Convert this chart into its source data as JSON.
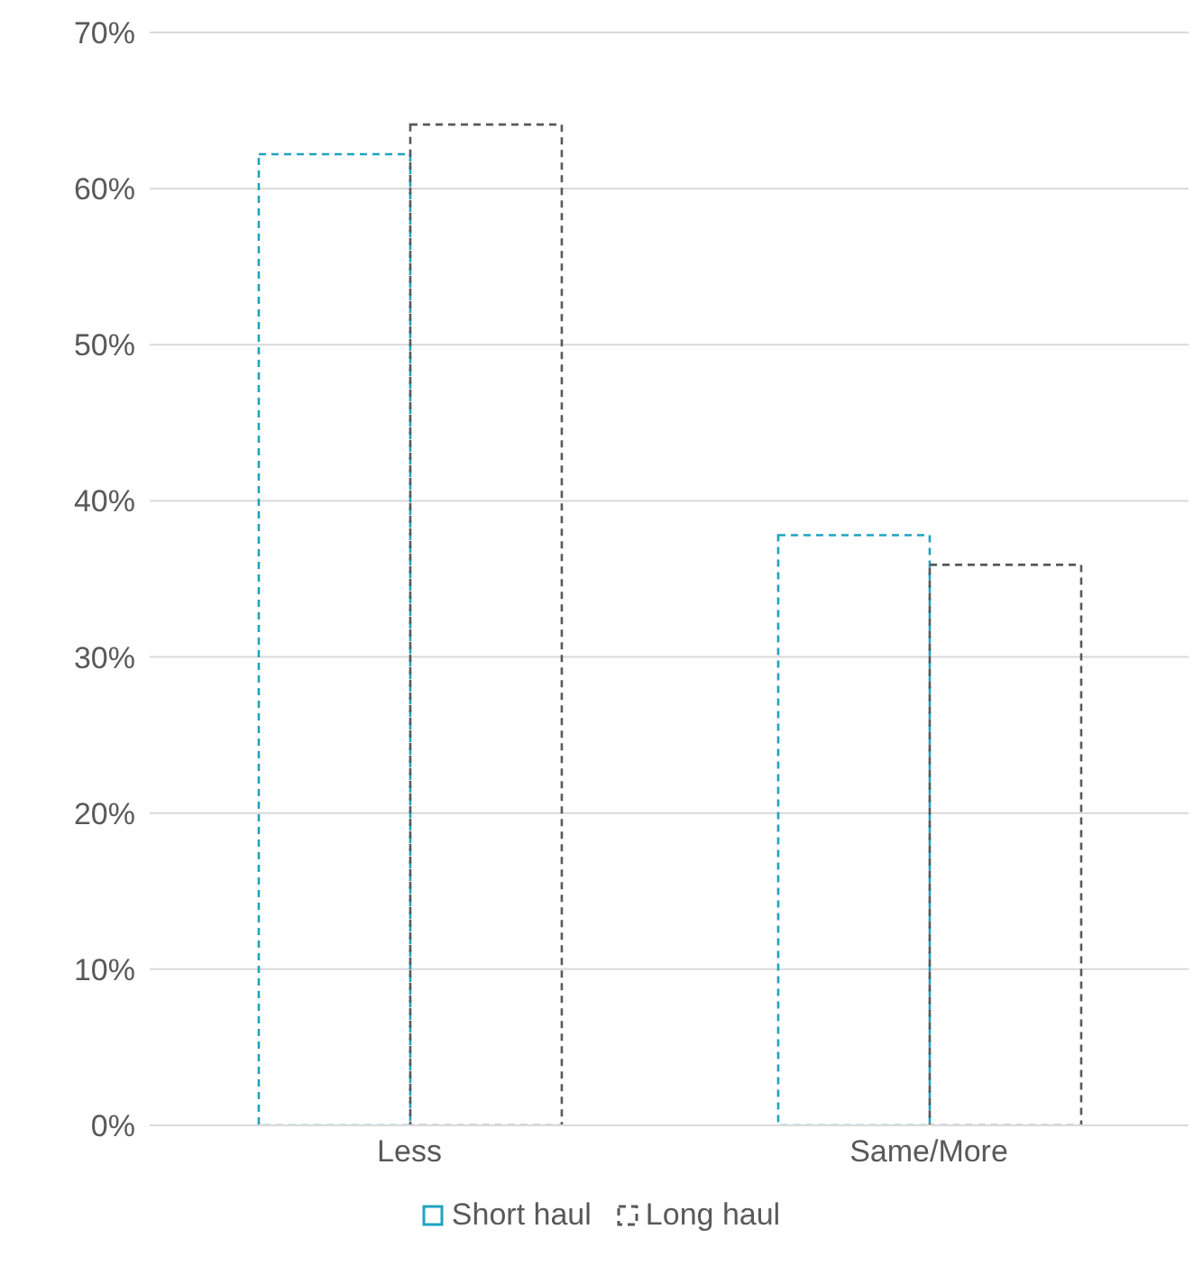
{
  "chart_data": {
    "type": "bar",
    "categories": [
      "Less",
      "Same/More"
    ],
    "series": [
      {
        "name": "Short haul",
        "color": "#1fa3c0",
        "values": [
          62.2,
          37.8
        ]
      },
      {
        "name": "Long haul",
        "color": "#595959",
        "values": [
          64.1,
          35.9
        ]
      }
    ],
    "ylim": [
      0,
      70
    ],
    "yticks": [
      {
        "value": 0,
        "label": "0%"
      },
      {
        "value": 10,
        "label": "10%"
      },
      {
        "value": 20,
        "label": "20%"
      },
      {
        "value": 30,
        "label": "30%"
      },
      {
        "value": 40,
        "label": "40%"
      },
      {
        "value": 50,
        "label": "50%"
      },
      {
        "value": 60,
        "label": "60%"
      },
      {
        "value": 70,
        "label": "70%"
      }
    ],
    "grid": "y",
    "legend": "bottom",
    "line_style": "dashed"
  }
}
